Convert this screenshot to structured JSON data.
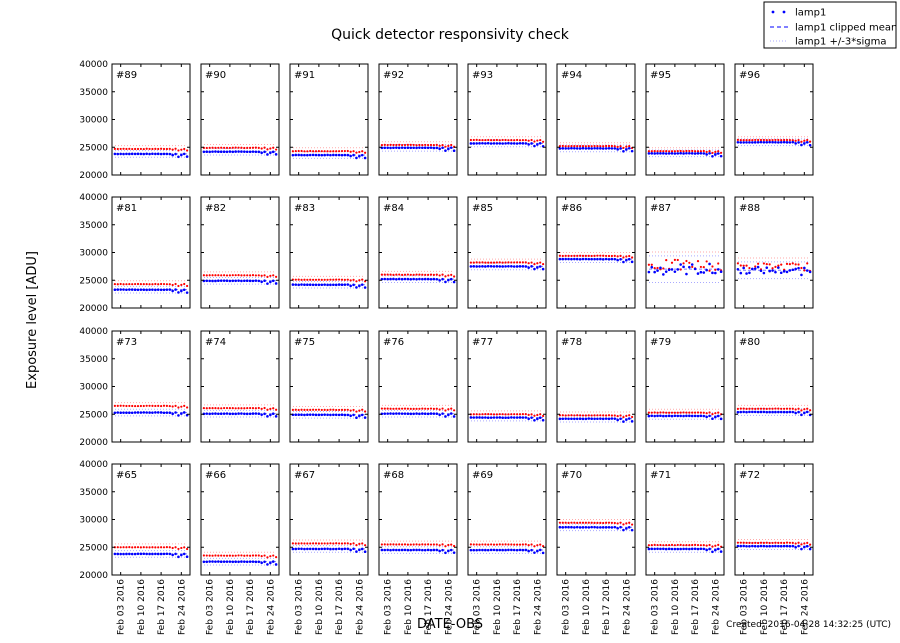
{
  "chart_data": {
    "type": "scatter",
    "title": "Quick detector responsivity check",
    "xlabel": "DATE-OBS",
    "ylabel": "Exposure level [ADU]",
    "footer": "Created: 2016-04-28 14:32:25 (UTC)",
    "ylim": [
      20000,
      40000
    ],
    "yticks": [
      "20000",
      "25000",
      "30000",
      "35000",
      "40000"
    ],
    "xlim": [
      "2016-01-31",
      "2016-02-27"
    ],
    "xticks": [
      "Feb 03 2016",
      "Feb 10 2016",
      "Feb 17 2016",
      "Feb 24 2016"
    ],
    "xtick_dates": [
      "2016-02-03",
      "2016-02-10",
      "2016-02-17",
      "2016-02-24"
    ],
    "grid": false,
    "legend_position": "top-right",
    "legend": [
      {
        "label": "lamp1",
        "style": "dots",
        "color": "#0000ff"
      },
      {
        "label": "lamp1 clipped mean",
        "style": "dashed",
        "color": "#0000ff"
      },
      {
        "label": "lamp1 +/-3*sigma",
        "style": "dotted",
        "color": "#aaaaff"
      }
    ],
    "colors": {
      "lamp1": "#0000ff",
      "secondary": "#ff0000"
    },
    "panels": [
      {
        "label": "#89",
        "lamp1": 23800,
        "red": 24700,
        "sigma": 200
      },
      {
        "label": "#90",
        "lamp1": 24200,
        "red": 24900,
        "sigma": 200
      },
      {
        "label": "#91",
        "lamp1": 23600,
        "red": 24300,
        "sigma": 200
      },
      {
        "label": "#92",
        "lamp1": 24900,
        "red": 25400,
        "sigma": 200
      },
      {
        "label": "#93",
        "lamp1": 25700,
        "red": 26300,
        "sigma": 200
      },
      {
        "label": "#94",
        "lamp1": 24800,
        "red": 25200,
        "sigma": 200
      },
      {
        "label": "#95",
        "lamp1": 23900,
        "red": 24300,
        "sigma": 200
      },
      {
        "label": "#96",
        "lamp1": 25900,
        "red": 26300,
        "sigma": 200
      },
      {
        "label": "#81",
        "lamp1": 23300,
        "red": 24300,
        "sigma": 200
      },
      {
        "label": "#82",
        "lamp1": 24900,
        "red": 25900,
        "sigma": 200
      },
      {
        "label": "#83",
        "lamp1": 24200,
        "red": 25100,
        "sigma": 200
      },
      {
        "label": "#84",
        "lamp1": 25200,
        "red": 26000,
        "sigma": 200
      },
      {
        "label": "#85",
        "lamp1": 27500,
        "red": 28200,
        "sigma": 200
      },
      {
        "label": "#86",
        "lamp1": 28800,
        "red": 29400,
        "sigma": 200
      },
      {
        "label": "#87",
        "lamp1": 27000,
        "red": 27700,
        "sigma": 800
      },
      {
        "label": "#88",
        "lamp1": 26800,
        "red": 27500,
        "sigma": 500
      },
      {
        "label": "#73",
        "lamp1": 25300,
        "red": 26500,
        "sigma": 200
      },
      {
        "label": "#74",
        "lamp1": 25100,
        "red": 26100,
        "sigma": 200
      },
      {
        "label": "#75",
        "lamp1": 24900,
        "red": 25800,
        "sigma": 200
      },
      {
        "label": "#76",
        "lamp1": 25100,
        "red": 26000,
        "sigma": 200
      },
      {
        "label": "#77",
        "lamp1": 24400,
        "red": 25000,
        "sigma": 200
      },
      {
        "label": "#78",
        "lamp1": 24200,
        "red": 24800,
        "sigma": 200
      },
      {
        "label": "#79",
        "lamp1": 24700,
        "red": 25300,
        "sigma": 200
      },
      {
        "label": "#80",
        "lamp1": 25400,
        "red": 26000,
        "sigma": 200
      },
      {
        "label": "#65",
        "lamp1": 23800,
        "red": 25000,
        "sigma": 200
      },
      {
        "label": "#66",
        "lamp1": 22400,
        "red": 23500,
        "sigma": 200
      },
      {
        "label": "#67",
        "lamp1": 24700,
        "red": 25700,
        "sigma": 200
      },
      {
        "label": "#68",
        "lamp1": 24500,
        "red": 25500,
        "sigma": 200
      },
      {
        "label": "#69",
        "lamp1": 24500,
        "red": 25500,
        "sigma": 200
      },
      {
        "label": "#70",
        "lamp1": 28600,
        "red": 29400,
        "sigma": 200
      },
      {
        "label": "#71",
        "lamp1": 24700,
        "red": 25400,
        "sigma": 200
      },
      {
        "label": "#72",
        "lamp1": 25200,
        "red": 25800,
        "sigma": 200
      }
    ]
  }
}
